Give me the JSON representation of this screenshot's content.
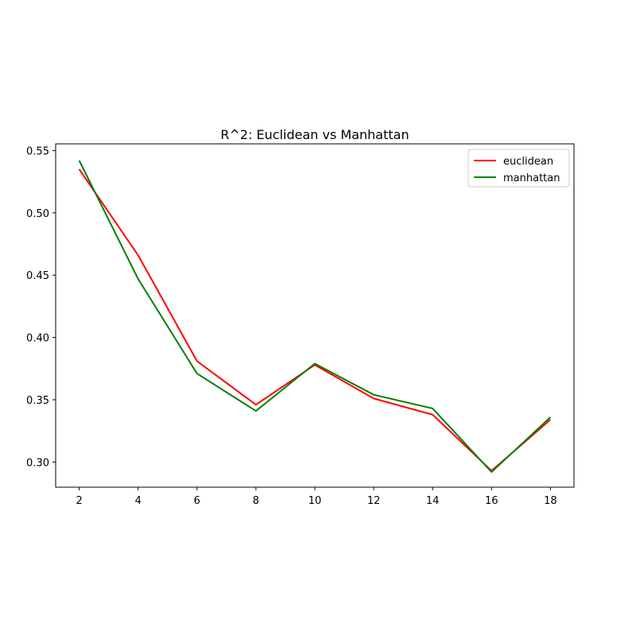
{
  "chart_data": {
    "type": "line",
    "title": "R^2: Euclidean vs Manhattan",
    "xlabel": "",
    "ylabel": "",
    "x": [
      2,
      4,
      6,
      8,
      10,
      12,
      14,
      16,
      18
    ],
    "xticks": [
      "2",
      "4",
      "6",
      "8",
      "10",
      "12",
      "14",
      "16",
      "18"
    ],
    "yticks": [
      "0.30",
      "0.35",
      "0.40",
      "0.45",
      "0.50",
      "0.55"
    ],
    "xlim": [
      1.2,
      18.8
    ],
    "ylim": [
      0.2798,
      0.5554
    ],
    "grid": false,
    "legend_position": "top-right",
    "series": [
      {
        "name": "euclidean",
        "color": "#ff0000",
        "values": [
          0.535,
          0.466,
          0.381,
          0.346,
          0.378,
          0.351,
          0.338,
          0.293,
          0.334
        ]
      },
      {
        "name": "manhattan",
        "color": "#008000",
        "values": [
          0.542,
          0.447,
          0.371,
          0.341,
          0.379,
          0.354,
          0.343,
          0.292,
          0.336
        ]
      }
    ]
  }
}
